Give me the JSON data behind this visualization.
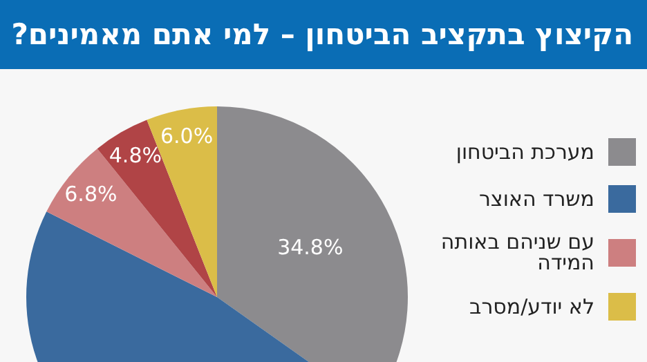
{
  "chart_data": {
    "type": "pie",
    "title": "הקיצוץ בתקציב הביטחון – למי אתם מאמינים?",
    "categories": [
      "מערכת הביטחון",
      "משרד האוצר",
      "עם שניהם באותה המידה",
      null,
      "לא יודע/מסרב"
    ],
    "values": [
      34.8,
      47.6,
      6.8,
      4.8,
      6.0
    ],
    "value_labels": [
      "34.8%",
      null,
      "6.8%",
      "4.8%",
      "6.0%"
    ],
    "colors": [
      "#8c8b8e",
      "#3a6a9e",
      "#cd7f80",
      "#b04446",
      "#dbbd48"
    ],
    "legend": "right"
  }
}
